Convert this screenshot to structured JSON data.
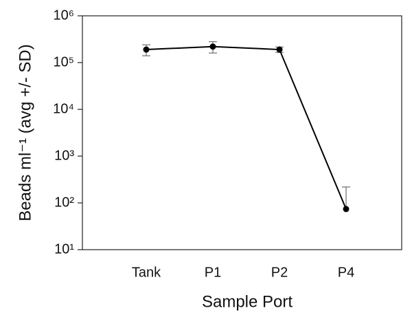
{
  "chart_data": {
    "type": "line",
    "categories": [
      "Tank",
      "P1",
      "P2",
      "P4"
    ],
    "series": [
      {
        "name": "Beads",
        "color": "#000000",
        "values": [
          190000,
          220000,
          190000,
          74
        ],
        "errors": [
          50000,
          60000,
          25000,
          145
        ]
      }
    ],
    "ylim": [
      10,
      1000000
    ],
    "log_y": true,
    "yticks": [
      {
        "value": 10,
        "label": "10¹"
      },
      {
        "value": 100,
        "label": "10²"
      },
      {
        "value": 1000,
        "label": "10³"
      },
      {
        "value": 10000,
        "label": "10⁴"
      },
      {
        "value": 100000,
        "label": "10⁵"
      },
      {
        "value": 1000000,
        "label": "10⁶"
      }
    ],
    "xlabel": "Sample Port",
    "ylabel": "Beads ml⁻¹ (avg +/- SD)"
  }
}
